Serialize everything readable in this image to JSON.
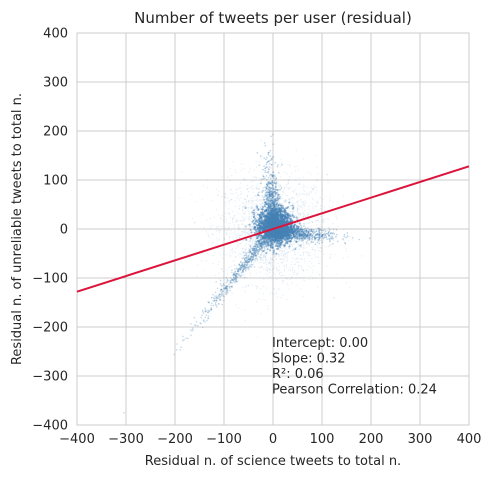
{
  "chart_data": {
    "type": "scatter",
    "title": "Number of tweets per user (residual)",
    "xlabel": "Residual n. of science tweets to total n.",
    "ylabel": "Residual n. of unreliable tweets to total n.",
    "xlim": [
      -400,
      400
    ],
    "ylim": [
      -400,
      400
    ],
    "xticks": [
      -400,
      -300,
      -200,
      -100,
      0,
      100,
      200,
      300,
      400
    ],
    "yticks": [
      -400,
      -300,
      -200,
      -100,
      0,
      100,
      200,
      300,
      400
    ],
    "grid": true,
    "point_color": "#4682b4",
    "regression": {
      "intercept": 0.0,
      "slope": 0.32,
      "color": "#dc143c"
    },
    "annotations": [
      "Intercept: 0.00",
      "Slope: 0.32",
      "R²: 0.06",
      "Pearson Correlation: 0.24"
    ]
  }
}
